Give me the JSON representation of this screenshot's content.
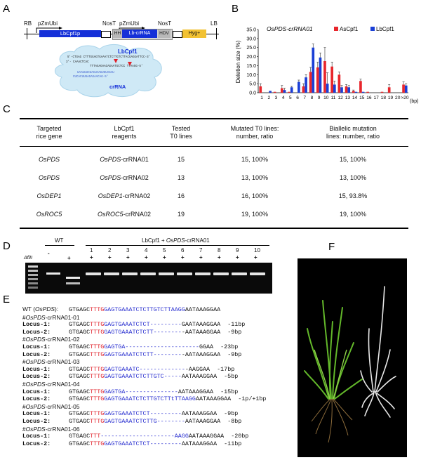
{
  "panels": {
    "a": "A",
    "b": "B",
    "c": "C",
    "d": "D",
    "e": "E",
    "f": "F"
  },
  "construct": {
    "labels": {
      "rb": "RB",
      "lb": "LB",
      "promoter1": "pZmUbi",
      "promoter2": "pZmUbi",
      "term1": "NosT",
      "term2": "NosT",
      "gene": "LbCpf1p",
      "hh": "HH",
      "crrna": "Lb-crRNA",
      "hdv": "HDV",
      "marker": "Hyg+"
    },
    "bubble": {
      "protein": "LbCpf1",
      "rna": "crRNA",
      "seq_top": "5'-CTGAG CTTTGGAGTGAAATCTCTTGTCTTACGAGGATTCC-3'",
      "seq_mid1": "3'- CAAACTCAC",
      "seq_mid2": "TTTAGAGAACAGAATGCTCC TTAAGG-5'",
      "seq_rna": "UAAUUUCUACUAAGUGUAGAU",
      "seq_end": "CUCACUUUAGAGAACAG-5'"
    },
    "colors": {
      "gene": "#1530d8",
      "crrna": "#1530d8",
      "hh": "#b8b8b8",
      "hdv": "#b8b8b8",
      "marker": "#f2c233",
      "bubble": "#cfe9f6"
    }
  },
  "chart_data": {
    "type": "bar",
    "title": "OsPDS-crRNA01",
    "ylabel": "Deletion size (%)",
    "xunit": "(bp)",
    "ylim": [
      0,
      35
    ],
    "yticks": [
      "0.0",
      "5.0",
      "10.0",
      "15.0",
      "20.0",
      "25.0",
      "30.0",
      "35.0"
    ],
    "categories": [
      "1",
      "2",
      "3",
      "4",
      "5",
      "6",
      "7",
      "8",
      "9",
      "10",
      "11",
      "12",
      "13",
      "14",
      "15",
      "16",
      "17",
      "18",
      "19",
      "20",
      ">20"
    ],
    "series": [
      {
        "name": "AsCpf1",
        "color": "#e8262c",
        "values": [
          3.5,
          0,
          0.5,
          2.5,
          0.5,
          0,
          3.5,
          11.5,
          14,
          17.5,
          14.5,
          10,
          3.5,
          1,
          6.5,
          0.5,
          0,
          0.5,
          3,
          0,
          4.5
        ]
      },
      {
        "name": "LbCpf1",
        "color": "#1a3fd6",
        "values": [
          0,
          1,
          0,
          1.5,
          3,
          6,
          8.5,
          25,
          19.5,
          5,
          4.5,
          3,
          3,
          0.5,
          0.5,
          0,
          0,
          0,
          0,
          0,
          4
        ]
      }
    ],
    "errors": [
      [
        1.5,
        0,
        0,
        1.5,
        0,
        0,
        1.5,
        2.5,
        3,
        7.5,
        2.5,
        1.5,
        1,
        0.5,
        1,
        0,
        0,
        0,
        1.5,
        0,
        1.5
      ],
      [
        0,
        0,
        0,
        1,
        0.5,
        1,
        1.5,
        2,
        2.5,
        6,
        2,
        1,
        1,
        0,
        0,
        0,
        0,
        0,
        0,
        0,
        1
      ]
    ],
    "grid": false,
    "legend": "top-right"
  },
  "table": {
    "headers": [
      [
        "Targeted",
        "rice gene"
      ],
      [
        "LbCpf1",
        "reagents"
      ],
      [
        "Tested",
        "T0 lines"
      ],
      [
        "Mutated T0 lines:",
        "number, ratio"
      ],
      [
        "Biallelic mutation",
        "lines: number, ratio"
      ]
    ],
    "rows": [
      {
        "gene": "OsPDS",
        "reagent_it": "OsPDS",
        "reagent_rest": "-crRNA01",
        "tested": "15",
        "mutated": "15, 100%",
        "biallelic": "15, 100%"
      },
      {
        "gene": "OsPDS",
        "reagent_it": "OsPDS",
        "reagent_rest": "-crRNA02",
        "tested": "13",
        "mutated": "13, 100%",
        "biallelic": "13, 100%"
      },
      {
        "gene": "OsDEP1",
        "reagent_it": "OsDEP1",
        "reagent_rest": "-crRNA02",
        "tested": "16",
        "mutated": "16, 100%",
        "biallelic": "15, 93.8%"
      },
      {
        "gene": "OsROC5",
        "reagent_it": "OsROC5",
        "reagent_rest": "-crRNA02",
        "tested": "19",
        "mutated": "19, 100%",
        "biallelic": "19, 100%"
      }
    ]
  },
  "gel": {
    "wt": "WT",
    "title_a": "LbCpf1 + ",
    "title_it": "OsPDS",
    "title_b": "-crRNA01",
    "enzyme": "AflII",
    "minus": "-",
    "plus": "+",
    "lanes": [
      "1",
      "2",
      "3",
      "4",
      "5",
      "6",
      "7",
      "8",
      "9",
      "10"
    ]
  },
  "alignment": {
    "wt_label_a": "WT (",
    "wt_label_it": "OsPDS",
    "wt_label_b": "):",
    "wt": {
      "pre": "GTGAGC",
      "pam": "TTTG",
      "target": "GAGTGAAATCTCTTGTCTTAAGG",
      "post": "AATAAAGGAA"
    },
    "groups": [
      {
        "name_a": "#",
        "name_it": "OsPDS",
        "name_b": "-crRNA01-01",
        "loci": [
          {
            "label": "Locus-1:",
            "pre": "GTGAGC",
            "pam": "TTTG",
            "target": "GAGTGAAATCTCT---------",
            "post": "GAATAAAGGAA",
            "note": "-11bp"
          },
          {
            "label": "Locus-2:",
            "pre": "GTGAGC",
            "pam": "TTTG",
            "target": "GAGTGAAATCTCTT--------",
            "post": "-AATAAAGGAA",
            "note": "-9bp"
          }
        ]
      },
      {
        "name_a": "#",
        "name_it": "OsPDS",
        "name_b": "-crRNA01-02",
        "loci": [
          {
            "label": "Locus-1:",
            "pre": "GTGAGC",
            "pam": "TTTG",
            "target": "GAGTGA---------------------",
            "post": "GGAA",
            "note": "-23bp"
          },
          {
            "label": "Locus-2:",
            "pre": "GTGAGC",
            "pam": "TTTG",
            "target": "GAGTGAAATCTCTT--------",
            "post": "-AATAAAGGAA",
            "note": "-9bp"
          }
        ]
      },
      {
        "name_a": "#",
        "name_it": "OsPDS",
        "name_b": "-crRNA01-03",
        "loci": [
          {
            "label": "Locus-1:",
            "pre": "GTGAGC",
            "pam": "TTTG",
            "target": "GAGTGAAATC-------------",
            "post": "-AAGGAA",
            "note": "-17bp"
          },
          {
            "label": "Locus-2:",
            "pre": "GTGAGC",
            "pam": "TTTG",
            "target": "GAGTGAAATCTCTTGTC-----",
            "post": "AATAAAGGAA",
            "note": "-5bp"
          }
        ]
      },
      {
        "name_a": "#",
        "name_it": "OsPDS",
        "name_b": "-crRNA01-04",
        "loci": [
          {
            "label": "Locus-1:",
            "pre": "GTGAGC",
            "pam": "TTTG",
            "target": "GAGTGA---------------",
            "post": "AATAAAGGAA",
            "note": "-15bp"
          },
          {
            "label": "Locus-2:",
            "pre": "GTGAGC",
            "pam": "TTTG",
            "target": "GAGTGAAATCTCTTGTCTTtTTAAGG",
            "post": "AATAAAGGAA",
            "note": "-1p/+1bp"
          }
        ]
      },
      {
        "name_a": "#",
        "name_it": "OsPDS",
        "name_b": "-crRNA01-05",
        "loci": [
          {
            "label": "Locus-1:",
            "pre": "GTGAGC",
            "pam": "TTTG",
            "target": "GAGTGAAATCTCT---------",
            "post": "AATAAAGGAA",
            "note": "-9bp"
          },
          {
            "label": "Locus-2:",
            "pre": "GTGAGC",
            "pam": "TTTG",
            "target": "GAGTGAAATCTCTTG--------",
            "post": "AATAAAGGAA",
            "note": "-8bp"
          }
        ]
      },
      {
        "name_a": "#",
        "name_it": "OsPDS",
        "name_b": "-crRNA01-06",
        "loci": [
          {
            "label": "Locus-1:",
            "pre": "GTGAGC",
            "pam": "TTT",
            "target": "---------------------AAGG",
            "post": "AATAAAGGAA",
            "note": "-20bp"
          },
          {
            "label": "Locus-2:",
            "pre": "GTGAGC",
            "pam": "TTTG",
            "target": "GAGTGAAATCTCT---------",
            "post": "AATAAAGGAA",
            "note": "-11bp"
          }
        ]
      }
    ]
  }
}
